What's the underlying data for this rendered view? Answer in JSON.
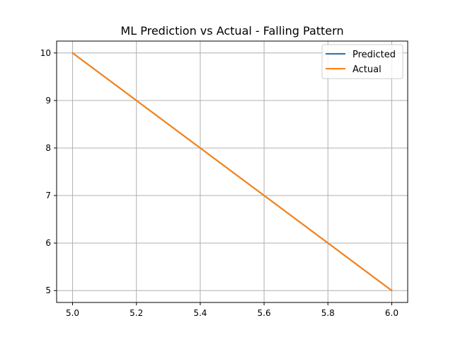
{
  "chart_data": {
    "type": "line",
    "title": "ML Prediction vs Actual - Falling Pattern",
    "xlabel": "",
    "ylabel": "",
    "xlim": [
      4.95,
      6.05
    ],
    "ylim": [
      4.75,
      10.25
    ],
    "x_ticks": [
      5.0,
      5.2,
      5.4,
      5.6,
      5.8,
      6.0
    ],
    "x_tick_labels": [
      "5.0",
      "5.2",
      "5.4",
      "5.6",
      "5.8",
      "6.0"
    ],
    "y_ticks": [
      5,
      6,
      7,
      8,
      9,
      10
    ],
    "y_tick_labels": [
      "5",
      "6",
      "7",
      "8",
      "9",
      "10"
    ],
    "grid": true,
    "legend_position": "top-right",
    "series": [
      {
        "name": "Predicted",
        "color": "#1f77b4",
        "x": [
          5,
          6
        ],
        "y": [
          10,
          5
        ]
      },
      {
        "name": "Actual",
        "color": "#ff7f0e",
        "x": [
          5,
          6
        ],
        "y": [
          10,
          5
        ]
      }
    ]
  }
}
